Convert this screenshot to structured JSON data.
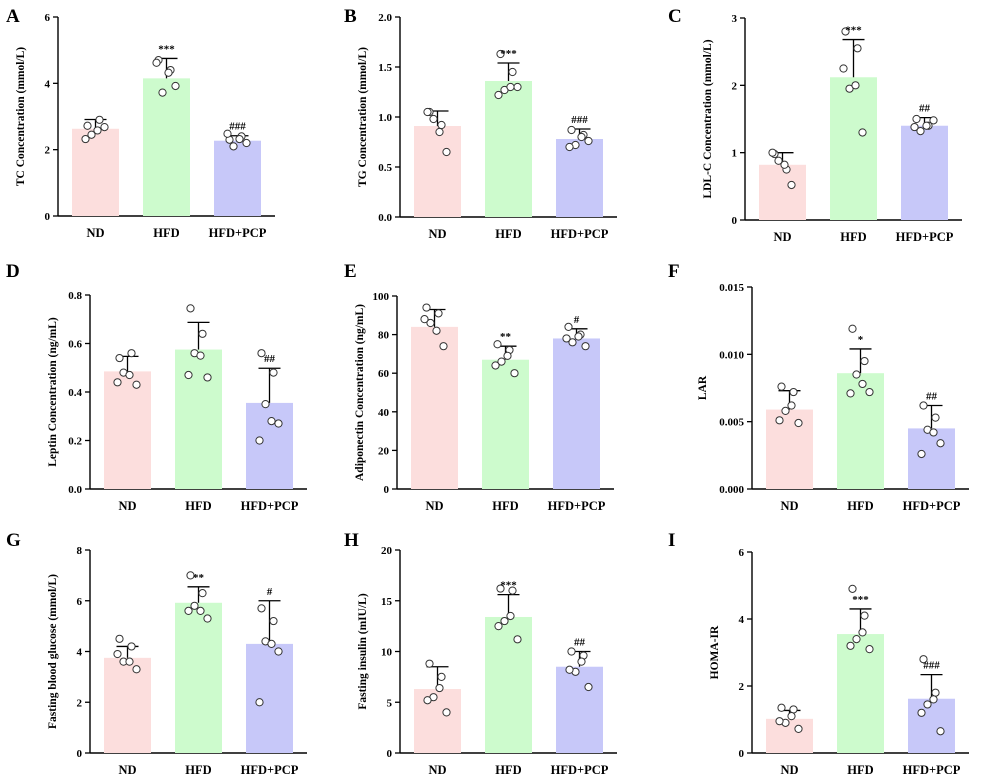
{
  "colors": {
    "ND": "#fcdedd",
    "HFD": "#cdfbcd",
    "HFD+PCP": "#c7c8f9",
    "error": "#000000"
  },
  "chart_data": [
    {
      "panel": "A",
      "type": "bar",
      "ylabel": "TC Concentration (mmol/L)",
      "categories": [
        "ND",
        "HFD",
        "HFD+PCP"
      ],
      "ylim": [
        0,
        6
      ],
      "yticks": [
        0,
        2,
        4,
        6
      ],
      "values": [
        2.63,
        4.15,
        2.27
      ],
      "errors": [
        0.28,
        0.6,
        0.15
      ],
      "significance": [
        "",
        "***",
        "###"
      ],
      "points": [
        [
          2.72,
          2.9,
          2.45,
          2.68,
          2.32,
          2.58
        ],
        [
          4.7,
          4.4,
          3.72,
          3.92,
          4.62,
          4.32
        ],
        [
          2.3,
          2.4,
          2.1,
          2.2,
          2.48,
          2.32
        ]
      ]
    },
    {
      "panel": "B",
      "type": "bar",
      "ylabel": "TG Concentration (mmol/L)",
      "categories": [
        "ND",
        "HFD",
        "HFD+PCP"
      ],
      "ylim": [
        0,
        2.0
      ],
      "yticks": [
        0.0,
        0.5,
        1.0,
        1.5,
        2.0
      ],
      "values": [
        0.91,
        1.36,
        0.78
      ],
      "errors": [
        0.15,
        0.18,
        0.1
      ],
      "significance": [
        "",
        "***",
        "###"
      ],
      "points": [
        [
          1.05,
          0.92,
          0.98,
          0.65,
          1.05,
          0.85
        ],
        [
          1.63,
          1.45,
          1.27,
          1.3,
          1.22,
          1.3
        ],
        [
          0.87,
          0.82,
          0.72,
          0.76,
          0.7,
          0.8
        ]
      ]
    },
    {
      "panel": "C",
      "type": "bar",
      "ylabel": "LDL-C Concentration (mmol/L)",
      "categories": [
        "ND",
        "HFD",
        "HFD+PCP"
      ],
      "ylim": [
        0,
        3
      ],
      "yticks": [
        0,
        1,
        2,
        3
      ],
      "values": [
        0.82,
        2.12,
        1.4
      ],
      "errors": [
        0.18,
        0.56,
        0.12
      ],
      "significance": [
        "",
        "***",
        "##"
      ],
      "points": [
        [
          0.98,
          0.75,
          0.88,
          0.52,
          1.0,
          0.82
        ],
        [
          2.8,
          2.55,
          1.95,
          1.3,
          2.25,
          2.0
        ],
        [
          1.5,
          1.4,
          1.32,
          1.48,
          1.38,
          1.4
        ]
      ]
    },
    {
      "panel": "D",
      "type": "bar",
      "ylabel": "Leptin Concentration (ng/mL)",
      "categories": [
        "ND",
        "HFD",
        "HFD+PCP"
      ],
      "ylim": [
        0,
        0.8
      ],
      "yticks": [
        0.0,
        0.2,
        0.4,
        0.6,
        0.8
      ],
      "values": [
        0.485,
        0.575,
        0.355
      ],
      "errors": [
        0.062,
        0.112,
        0.143
      ],
      "significance": [
        "",
        "",
        "##"
      ],
      "points": [
        [
          0.54,
          0.56,
          0.48,
          0.43,
          0.44,
          0.47
        ],
        [
          0.745,
          0.64,
          0.56,
          0.46,
          0.47,
          0.55
        ],
        [
          0.56,
          0.48,
          0.35,
          0.27,
          0.2,
          0.28
        ]
      ]
    },
    {
      "panel": "E",
      "type": "bar",
      "ylabel": "Adiponectin Concentration (ng/mL)",
      "categories": [
        "ND",
        "HFD",
        "HFD+PCP"
      ],
      "ylim": [
        0,
        100
      ],
      "yticks": [
        0,
        20,
        40,
        60,
        80,
        100
      ],
      "values": [
        84,
        67,
        78
      ],
      "errors": [
        9,
        7,
        5
      ],
      "significance": [
        "",
        "**",
        "#"
      ],
      "points": [
        [
          94,
          91,
          86,
          74,
          88,
          82
        ],
        [
          75,
          72,
          66,
          60,
          64,
          69
        ],
        [
          84,
          80,
          76,
          74,
          78,
          79
        ]
      ]
    },
    {
      "panel": "F",
      "type": "bar",
      "ylabel": "LAR",
      "categories": [
        "ND",
        "HFD",
        "HFD+PCP"
      ],
      "ylim": [
        0,
        0.015
      ],
      "yticks": [
        0.0,
        0.005,
        0.01,
        0.015
      ],
      "ytick_labels": [
        "0.000",
        "0.005",
        "0.010",
        "0.015"
      ],
      "values": [
        0.0059,
        0.0086,
        0.0045
      ],
      "errors": [
        0.0014,
        0.0018,
        0.0017
      ],
      "significance": [
        "",
        "*",
        "##"
      ],
      "points": [
        [
          0.0076,
          0.0072,
          0.0058,
          0.0049,
          0.0051,
          0.0062
        ],
        [
          0.0119,
          0.0095,
          0.0085,
          0.0072,
          0.0071,
          0.0078
        ],
        [
          0.0062,
          0.0053,
          0.0044,
          0.0034,
          0.0026,
          0.0042
        ]
      ]
    },
    {
      "panel": "G",
      "type": "bar",
      "ylabel": "Fasting blood glucose (mmol/L)",
      "categories": [
        "ND",
        "HFD",
        "HFD+PCP"
      ],
      "ylim": [
        0,
        8
      ],
      "yticks": [
        0,
        2,
        4,
        6,
        8
      ],
      "values": [
        3.75,
        5.92,
        4.3
      ],
      "errors": [
        0.45,
        0.63,
        1.7
      ],
      "significance": [
        "",
        "**",
        "#"
      ],
      "points": [
        [
          4.5,
          4.2,
          3.6,
          3.3,
          3.9,
          3.6
        ],
        [
          7.0,
          6.3,
          5.8,
          5.3,
          5.6,
          5.6
        ],
        [
          5.7,
          5.2,
          4.4,
          4.0,
          2.0,
          4.3
        ]
      ]
    },
    {
      "panel": "H",
      "type": "bar",
      "ylabel": "Fasting insulin (mIU/L)",
      "categories": [
        "ND",
        "HFD",
        "HFD+PCP"
      ],
      "ylim": [
        0,
        20
      ],
      "yticks": [
        0,
        5,
        10,
        15,
        20
      ],
      "values": [
        6.3,
        13.4,
        8.5
      ],
      "errors": [
        2.2,
        2.2,
        1.5
      ],
      "significance": [
        "",
        "***",
        "##"
      ],
      "points": [
        [
          8.8,
          7.5,
          5.5,
          4.0,
          5.2,
          6.4
        ],
        [
          16.2,
          16.0,
          13.0,
          11.2,
          12.5,
          13.5
        ],
        [
          10.0,
          9.6,
          8.0,
          6.5,
          8.2,
          9.0
        ]
      ]
    },
    {
      "panel": "I",
      "type": "bar",
      "ylabel": "HOMA-IR",
      "categories": [
        "ND",
        "HFD",
        "HFD+PCP"
      ],
      "ylim": [
        0,
        6
      ],
      "yticks": [
        0,
        2,
        4,
        6
      ],
      "values": [
        1.02,
        3.55,
        1.62
      ],
      "errors": [
        0.25,
        0.75,
        0.72
      ],
      "significance": [
        "",
        "***",
        "###"
      ],
      "points": [
        [
          1.35,
          1.3,
          0.9,
          0.72,
          0.95,
          1.1
        ],
        [
          4.9,
          4.1,
          3.4,
          3.1,
          3.2,
          3.6
        ],
        [
          2.8,
          1.8,
          1.45,
          0.65,
          1.2,
          1.6
        ]
      ]
    }
  ]
}
